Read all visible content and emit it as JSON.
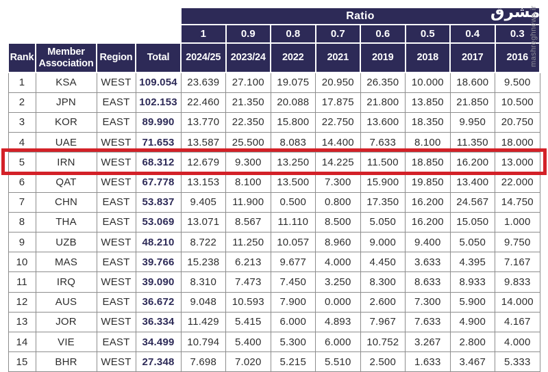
{
  "colors": {
    "header_bg": "#2d2a57",
    "grid_line": "#8c8c8c",
    "cell_text": "#2d2d2d",
    "total_text": "#2d2a57",
    "highlight_border": "#d32128",
    "watermark_gray": "#8e8e99"
  },
  "watermark": {
    "logo_text": "مشرق",
    "site_text": "mashreghnews.ir"
  },
  "ratio_header": {
    "label": "Ratio",
    "values": [
      "1",
      "0.9",
      "0.8",
      "0.7",
      "0.6",
      "0.5",
      "0.4",
      "0.3"
    ]
  },
  "columns": [
    "Rank",
    "Member Association",
    "Region",
    "Total",
    "2024/25",
    "2023/24",
    "2022",
    "2021",
    "2019",
    "2018",
    "2017",
    "2016"
  ],
  "rows": [
    {
      "rank": "1",
      "member": "KSA",
      "region": "WEST",
      "total": "109.054",
      "values": [
        "23.639",
        "27.100",
        "19.075",
        "20.950",
        "26.350",
        "10.000",
        "18.600",
        "9.500"
      ],
      "highlighted": false
    },
    {
      "rank": "2",
      "member": "JPN",
      "region": "EAST",
      "total": "102.153",
      "values": [
        "22.460",
        "21.350",
        "20.088",
        "17.875",
        "21.800",
        "13.850",
        "21.850",
        "10.500"
      ],
      "highlighted": false
    },
    {
      "rank": "3",
      "member": "KOR",
      "region": "EAST",
      "total": "89.990",
      "values": [
        "13.770",
        "22.350",
        "15.800",
        "22.750",
        "13.600",
        "18.350",
        "9.950",
        "20.750"
      ],
      "highlighted": false
    },
    {
      "rank": "4",
      "member": "UAE",
      "region": "WEST",
      "total": "71.653",
      "values": [
        "13.587",
        "25.500",
        "8.083",
        "14.400",
        "7.633",
        "8.100",
        "11.350",
        "18.000"
      ],
      "highlighted": false
    },
    {
      "rank": "5",
      "member": "IRN",
      "region": "WEST",
      "total": "68.312",
      "values": [
        "12.679",
        "9.300",
        "13.250",
        "14.225",
        "11.500",
        "18.850",
        "16.200",
        "13.000"
      ],
      "highlighted": true
    },
    {
      "rank": "6",
      "member": "QAT",
      "region": "WEST",
      "total": "67.778",
      "values": [
        "13.153",
        "8.100",
        "13.500",
        "7.300",
        "15.900",
        "19.850",
        "13.400",
        "22.000"
      ],
      "highlighted": false
    },
    {
      "rank": "7",
      "member": "CHN",
      "region": "EAST",
      "total": "53.837",
      "values": [
        "9.405",
        "11.900",
        "0.500",
        "0.800",
        "17.350",
        "16.200",
        "24.567",
        "14.750"
      ],
      "highlighted": false
    },
    {
      "rank": "8",
      "member": "THA",
      "region": "EAST",
      "total": "53.069",
      "values": [
        "13.071",
        "8.567",
        "11.110",
        "8.500",
        "5.050",
        "16.200",
        "15.050",
        "1.000"
      ],
      "highlighted": false
    },
    {
      "rank": "9",
      "member": "UZB",
      "region": "WEST",
      "total": "48.210",
      "values": [
        "8.722",
        "11.250",
        "10.057",
        "8.960",
        "9.000",
        "9.400",
        "5.050",
        "9.750"
      ],
      "highlighted": false
    },
    {
      "rank": "10",
      "member": "MAS",
      "region": "EAST",
      "total": "39.766",
      "values": [
        "15.238",
        "6.213",
        "9.677",
        "4.000",
        "4.450",
        "3.633",
        "4.395",
        "7.167"
      ],
      "highlighted": false
    },
    {
      "rank": "11",
      "member": "IRQ",
      "region": "WEST",
      "total": "39.090",
      "values": [
        "8.310",
        "7.473",
        "7.450",
        "3.250",
        "8.300",
        "8.633",
        "8.933",
        "9.833"
      ],
      "highlighted": false
    },
    {
      "rank": "12",
      "member": "AUS",
      "region": "EAST",
      "total": "36.672",
      "values": [
        "9.048",
        "10.593",
        "7.900",
        "0.000",
        "2.600",
        "7.300",
        "5.900",
        "14.000"
      ],
      "highlighted": false
    },
    {
      "rank": "13",
      "member": "JOR",
      "region": "WEST",
      "total": "36.334",
      "values": [
        "11.429",
        "5.415",
        "6.000",
        "4.893",
        "7.967",
        "7.633",
        "4.900",
        "4.167"
      ],
      "highlighted": false
    },
    {
      "rank": "14",
      "member": "VIE",
      "region": "EAST",
      "total": "34.499",
      "values": [
        "10.794",
        "5.400",
        "5.300",
        "6.000",
        "10.752",
        "3.267",
        "2.800",
        "4.000"
      ],
      "highlighted": false
    },
    {
      "rank": "15",
      "member": "BHR",
      "region": "WEST",
      "total": "27.348",
      "values": [
        "7.698",
        "7.020",
        "5.215",
        "5.510",
        "2.500",
        "1.633",
        "3.467",
        "5.333"
      ],
      "highlighted": false
    }
  ]
}
